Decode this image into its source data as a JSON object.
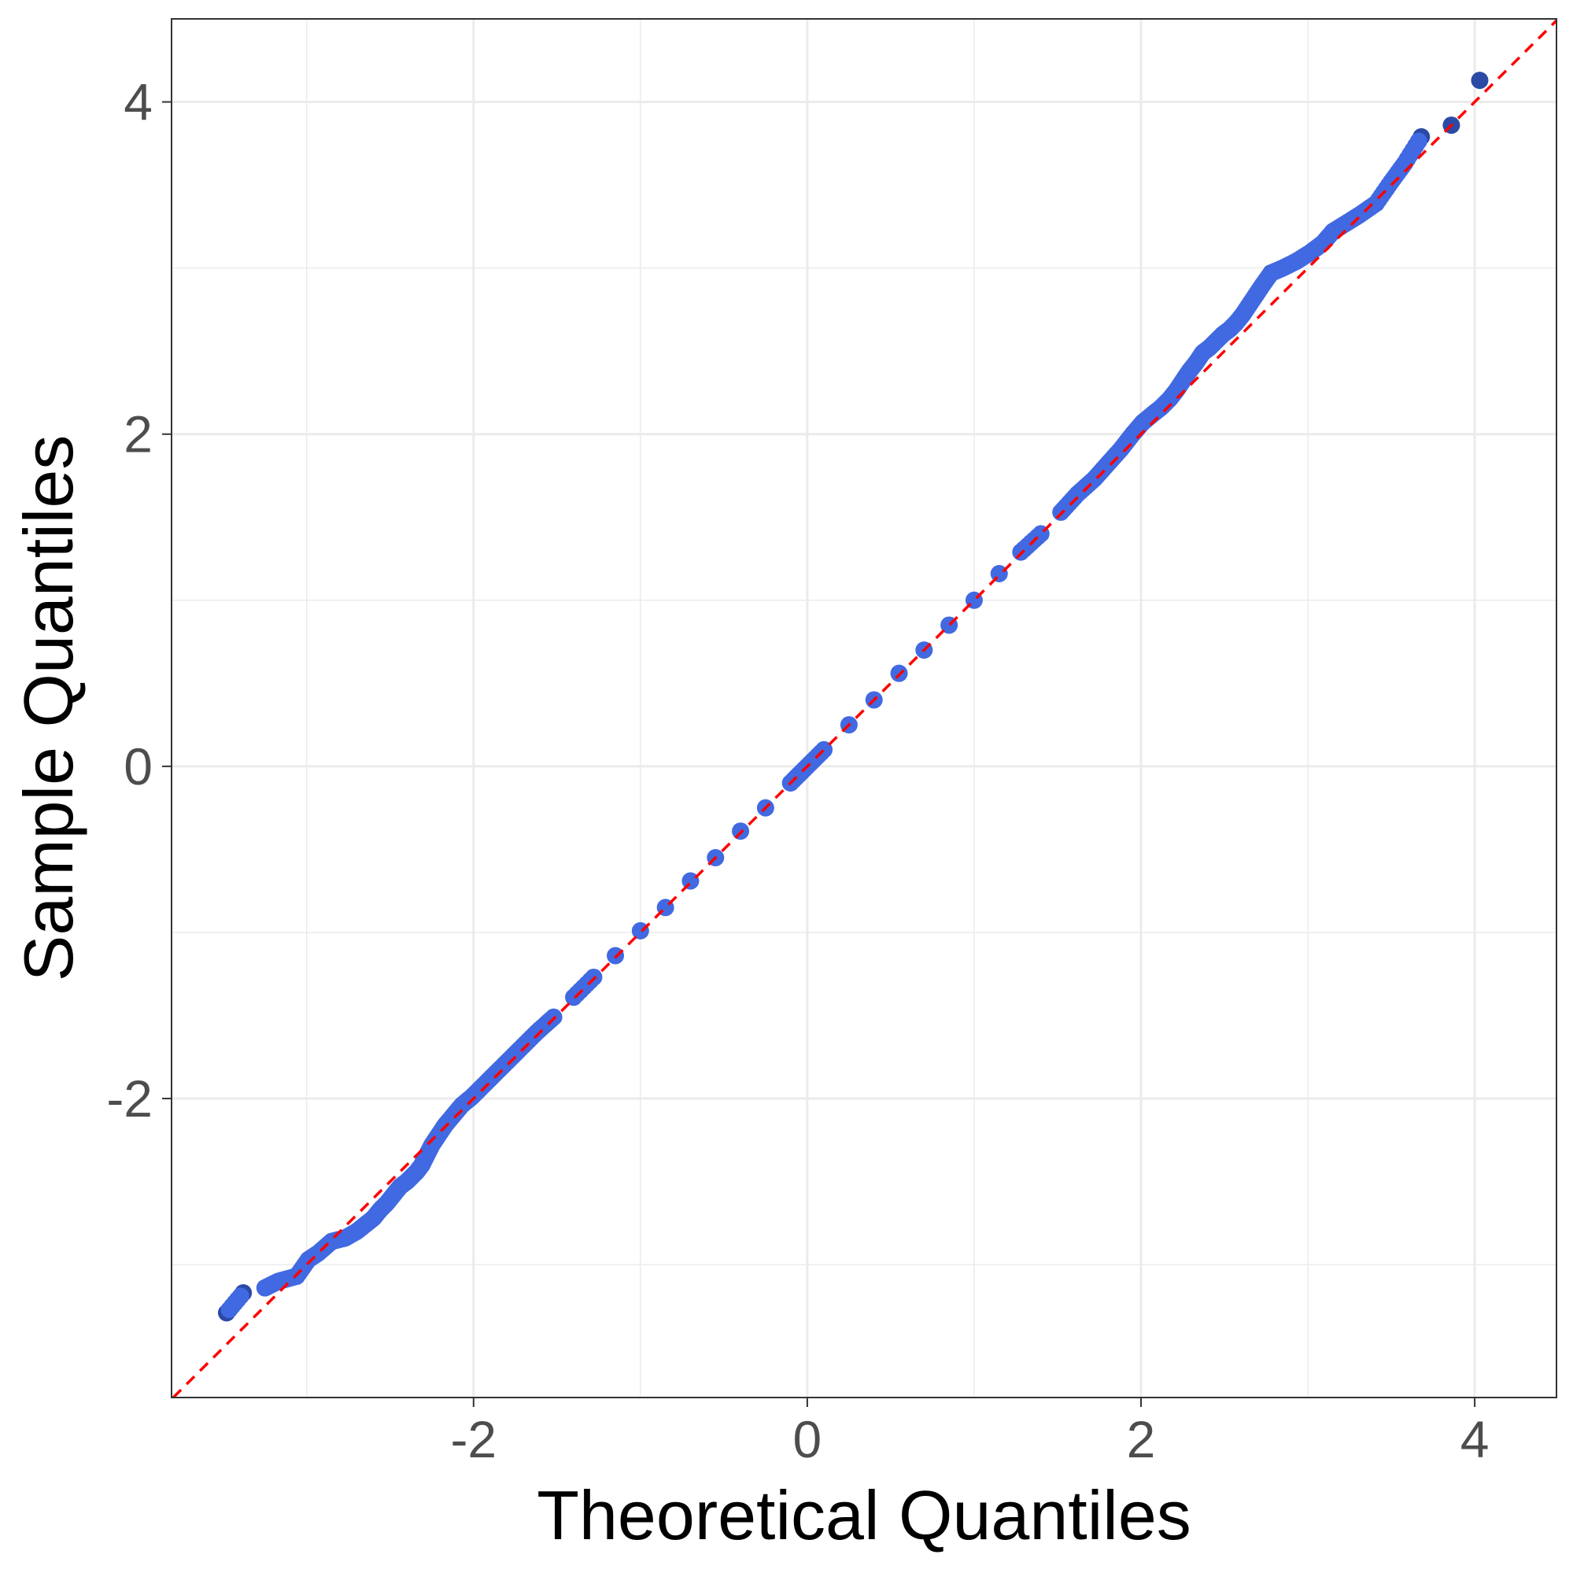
{
  "chart_data": {
    "type": "scatter",
    "title": "",
    "xlabel": "Theoretical Quantiles",
    "ylabel": "Sample Quantiles",
    "xlim": [
      -3.81,
      4.49
    ],
    "ylim": [
      -3.8,
      4.5
    ],
    "x_ticks": [
      -2,
      0,
      2,
      4
    ],
    "y_ticks": [
      -2,
      0,
      2,
      4
    ],
    "x_tick_labels": [
      "-2",
      "0",
      "2",
      "4"
    ],
    "y_tick_labels": [
      "-2",
      "0",
      "2",
      "4"
    ],
    "grid": true,
    "colors": {
      "point_light": "#4169e1",
      "point_dark": "#2b4aa6",
      "reference_line": "#ff0000",
      "grid": "#ebebeb",
      "panel_border": "#333333"
    },
    "reference_line": {
      "slope": 1,
      "intercept": 0,
      "style": "dashed"
    },
    "series": [
      {
        "points": [
          [
            -3.48,
            -3.29
          ],
          [
            -3.38,
            -3.17
          ],
          [
            -3.25,
            -3.14
          ],
          [
            -3.17,
            -3.1
          ],
          [
            -3.06,
            -3.07
          ],
          [
            -2.99,
            -2.97
          ],
          [
            -2.93,
            -2.93
          ],
          [
            -2.85,
            -2.86
          ],
          [
            -2.77,
            -2.84
          ],
          [
            -2.7,
            -2.8
          ],
          [
            -2.65,
            -2.76
          ],
          [
            -2.6,
            -2.72
          ],
          [
            -2.56,
            -2.67
          ],
          [
            -2.52,
            -2.63
          ],
          [
            -2.48,
            -2.58
          ],
          [
            -2.44,
            -2.53
          ],
          [
            -2.4,
            -2.5
          ],
          [
            -2.37,
            -2.47
          ],
          [
            -2.34,
            -2.44
          ],
          [
            -2.31,
            -2.4
          ],
          [
            -2.28,
            -2.34
          ],
          [
            -2.25,
            -2.28
          ],
          [
            -2.21,
            -2.22
          ],
          [
            -2.17,
            -2.16
          ],
          [
            -2.12,
            -2.1
          ],
          [
            -2.07,
            -2.04
          ],
          [
            -2.01,
            -1.99
          ],
          [
            -1.95,
            -1.93
          ],
          [
            -1.88,
            -1.86
          ],
          [
            -1.8,
            -1.78
          ],
          [
            -1.72,
            -1.7
          ],
          [
            -1.62,
            -1.6
          ],
          [
            -1.52,
            -1.51
          ],
          [
            -1.4,
            -1.39
          ],
          [
            -1.28,
            -1.27
          ],
          [
            -1.15,
            -1.14
          ],
          [
            -1.0,
            -0.99
          ],
          [
            -0.85,
            -0.85
          ],
          [
            -0.7,
            -0.69
          ],
          [
            -0.55,
            -0.55
          ],
          [
            -0.4,
            -0.39
          ],
          [
            -0.25,
            -0.25
          ],
          [
            -0.1,
            -0.1
          ],
          [
            0.0,
            0.0
          ],
          [
            0.1,
            0.1
          ],
          [
            0.25,
            0.25
          ],
          [
            0.4,
            0.4
          ],
          [
            0.55,
            0.56
          ],
          [
            0.7,
            0.7
          ],
          [
            0.85,
            0.85
          ],
          [
            1.0,
            1.0
          ],
          [
            1.15,
            1.16
          ],
          [
            1.28,
            1.29
          ],
          [
            1.4,
            1.4
          ],
          [
            1.52,
            1.53
          ],
          [
            1.62,
            1.64
          ],
          [
            1.72,
            1.73
          ],
          [
            1.8,
            1.82
          ],
          [
            1.88,
            1.91
          ],
          [
            1.95,
            2.0
          ],
          [
            2.01,
            2.07
          ],
          [
            2.07,
            2.12
          ],
          [
            2.12,
            2.16
          ],
          [
            2.17,
            2.21
          ],
          [
            2.21,
            2.26
          ],
          [
            2.25,
            2.32
          ],
          [
            2.29,
            2.38
          ],
          [
            2.33,
            2.43
          ],
          [
            2.37,
            2.49
          ],
          [
            2.41,
            2.52
          ],
          [
            2.45,
            2.56
          ],
          [
            2.49,
            2.6
          ],
          [
            2.53,
            2.63
          ],
          [
            2.57,
            2.67
          ],
          [
            2.61,
            2.72
          ],
          [
            2.65,
            2.78
          ],
          [
            2.69,
            2.84
          ],
          [
            2.73,
            2.9
          ],
          [
            2.78,
            2.97
          ],
          [
            2.85,
            3.0
          ],
          [
            2.93,
            3.04
          ],
          [
            3.01,
            3.09
          ],
          [
            3.09,
            3.15
          ],
          [
            3.15,
            3.22
          ],
          [
            3.23,
            3.27
          ],
          [
            3.31,
            3.32
          ],
          [
            3.41,
            3.39
          ],
          [
            3.5,
            3.52
          ],
          [
            3.58,
            3.63
          ],
          [
            3.68,
            3.79
          ],
          [
            3.86,
            3.86
          ],
          [
            4.03,
            4.13
          ]
        ]
      }
    ]
  }
}
